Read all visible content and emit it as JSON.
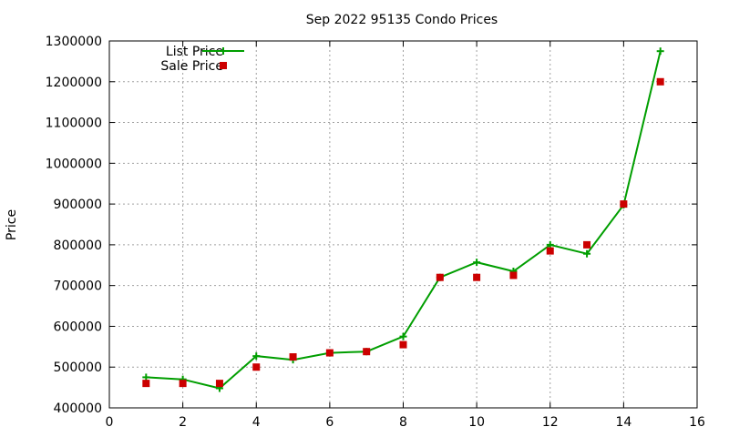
{
  "chart_data": {
    "type": "line",
    "title": "Sep 2022 95135 Condo Prices",
    "xlabel": "",
    "ylabel": "Price",
    "xlim": [
      0,
      16
    ],
    "ylim": [
      400000,
      1300000
    ],
    "xticks": [
      0,
      2,
      4,
      6,
      8,
      10,
      12,
      14,
      16
    ],
    "yticks": [
      400000,
      500000,
      600000,
      700000,
      800000,
      900000,
      1000000,
      1100000,
      1200000,
      1300000
    ],
    "grid": true,
    "legend_position": "top-left",
    "series": [
      {
        "name": "List Price",
        "style": "line-with-plus-markers",
        "color": "#009e00",
        "x": [
          1,
          2,
          3,
          4,
          5,
          6,
          7,
          8,
          9,
          10,
          11,
          12,
          13,
          14,
          15
        ],
        "values": [
          475000,
          470000,
          448000,
          527000,
          518000,
          535000,
          538000,
          575000,
          720000,
          757000,
          735000,
          800000,
          778000,
          898000,
          1275000
        ]
      },
      {
        "name": "Sale Price",
        "style": "square-points",
        "color": "#cc0000",
        "x": [
          1,
          2,
          3,
          4,
          5,
          6,
          7,
          8,
          9,
          10,
          11,
          12,
          13,
          14,
          15
        ],
        "values": [
          460000,
          460000,
          460000,
          500000,
          525000,
          535000,
          538000,
          555000,
          720000,
          720000,
          725000,
          785000,
          800000,
          900000,
          1200000
        ]
      }
    ]
  }
}
